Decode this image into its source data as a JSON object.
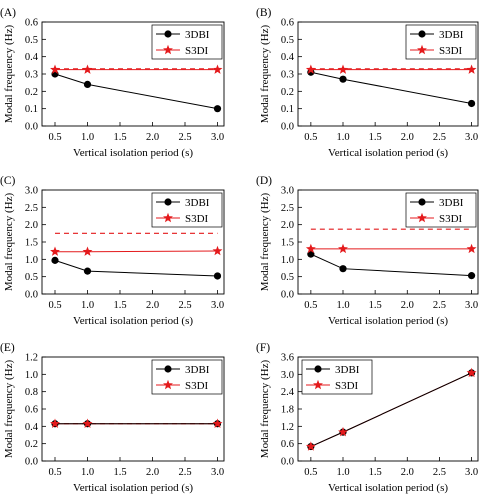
{
  "chart_data": [
    {
      "panel": "(A)",
      "type": "line",
      "xlabel": "Vertical isolation period (s)",
      "ylabel": "Modal frequency (Hz)",
      "xlim": [
        0.3,
        3.1
      ],
      "xticks": [
        0.5,
        1.0,
        1.5,
        2.0,
        2.5,
        3.0
      ],
      "xtick_labels": [
        "0.5",
        "1.0",
        "1.5",
        "2.0",
        "2.5",
        "3.0"
      ],
      "ylim": [
        0.0,
        0.6
      ],
      "yticks": [
        0.0,
        0.1,
        0.2,
        0.3,
        0.4,
        0.5,
        0.6
      ],
      "ytick_labels": [
        "0.0",
        "0.1",
        "0.2",
        "0.3",
        "0.4",
        "0.5",
        "0.6"
      ],
      "legend_position": "top-right",
      "x": [
        0.5,
        1.0,
        3.0
      ],
      "series": [
        {
          "name": "3DBI",
          "values": [
            0.3,
            0.24,
            0.1
          ],
          "color": "#000000",
          "marker": "circle"
        },
        {
          "name": "S3DI",
          "values": [
            0.325,
            0.325,
            0.325
          ],
          "color": "#e41a1c",
          "marker": "star"
        }
      ],
      "dashed_line": 0.33
    },
    {
      "panel": "(B)",
      "type": "line",
      "xlabel": "Vertical isolation period (s)",
      "ylabel": "Modal frequency (Hz)",
      "xlim": [
        0.3,
        3.1
      ],
      "xticks": [
        0.5,
        1.0,
        1.5,
        2.0,
        2.5,
        3.0
      ],
      "xtick_labels": [
        "0.5",
        "1.0",
        "1.5",
        "2.0",
        "2.5",
        "3.0"
      ],
      "ylim": [
        0.0,
        0.6
      ],
      "yticks": [
        0.0,
        0.1,
        0.2,
        0.3,
        0.4,
        0.5,
        0.6
      ],
      "ytick_labels": [
        "0.0",
        "0.1",
        "0.2",
        "0.3",
        "0.4",
        "0.5",
        "0.6"
      ],
      "legend_position": "top-right",
      "x": [
        0.5,
        1.0,
        3.0
      ],
      "series": [
        {
          "name": "3DBI",
          "values": [
            0.31,
            0.27,
            0.13
          ],
          "color": "#000000",
          "marker": "circle"
        },
        {
          "name": "S3DI",
          "values": [
            0.325,
            0.325,
            0.325
          ],
          "color": "#e41a1c",
          "marker": "star"
        }
      ],
      "dashed_line": 0.33
    },
    {
      "panel": "(C)",
      "type": "line",
      "xlabel": "Vertical isolation period (s)",
      "ylabel": "Modal frequency (Hz)",
      "xlim": [
        0.3,
        3.1
      ],
      "xticks": [
        0.5,
        1.0,
        1.5,
        2.0,
        2.5,
        3.0
      ],
      "xtick_labels": [
        "0.5",
        "1.0",
        "1.5",
        "2.0",
        "2.5",
        "3.0"
      ],
      "ylim": [
        0.0,
        3.0
      ],
      "yticks": [
        0.0,
        0.5,
        1.0,
        1.5,
        2.0,
        2.5,
        3.0
      ],
      "ytick_labels": [
        "0.0",
        "0.5",
        "1.0",
        "1.5",
        "2.0",
        "2.5",
        "3.0"
      ],
      "legend_position": "top-right",
      "x": [
        0.5,
        1.0,
        3.0
      ],
      "series": [
        {
          "name": "3DBI",
          "values": [
            0.97,
            0.66,
            0.52
          ],
          "color": "#000000",
          "marker": "circle"
        },
        {
          "name": "S3DI",
          "values": [
            1.22,
            1.22,
            1.24
          ],
          "color": "#e41a1c",
          "marker": "star"
        }
      ],
      "dashed_line": 1.75
    },
    {
      "panel": "(D)",
      "type": "line",
      "xlabel": "Vertical isolation period (s)",
      "ylabel": "Modal frequency (Hz)",
      "xlim": [
        0.3,
        3.1
      ],
      "xticks": [
        0.5,
        1.0,
        1.5,
        2.0,
        2.5,
        3.0
      ],
      "xtick_labels": [
        "0.5",
        "1.0",
        "1.5",
        "2.0",
        "2.5",
        "3.0"
      ],
      "ylim": [
        0.0,
        3.0
      ],
      "yticks": [
        0.0,
        0.5,
        1.0,
        1.5,
        2.0,
        2.5,
        3.0
      ],
      "ytick_labels": [
        "0.0",
        "0.5",
        "1.0",
        "1.5",
        "2.0",
        "2.5",
        "3.0"
      ],
      "legend_position": "top-right",
      "x": [
        0.5,
        1.0,
        3.0
      ],
      "series": [
        {
          "name": "3DBI",
          "values": [
            1.15,
            0.73,
            0.53
          ],
          "color": "#000000",
          "marker": "circle"
        },
        {
          "name": "S3DI",
          "values": [
            1.3,
            1.3,
            1.3
          ],
          "color": "#e41a1c",
          "marker": "star"
        }
      ],
      "dashed_line": 1.87
    },
    {
      "panel": "(E)",
      "type": "line",
      "xlabel": "Vertical isolation period (s)",
      "ylabel": "Modal frequency (Hz)",
      "xlim": [
        0.3,
        3.1
      ],
      "xticks": [
        0.5,
        1.0,
        1.5,
        2.0,
        2.5,
        3.0
      ],
      "xtick_labels": [
        "0.5",
        "1.0",
        "1.5",
        "2.0",
        "2.5",
        "3.0"
      ],
      "ylim": [
        0.0,
        1.2
      ],
      "yticks": [
        0.0,
        0.2,
        0.4,
        0.6,
        0.8,
        1.0,
        1.2
      ],
      "ytick_labels": [
        "0.0",
        "0.2",
        "0.4",
        "0.6",
        "0.8",
        "1.0",
        "1.2"
      ],
      "legend_position": "top-right",
      "x": [
        0.5,
        1.0,
        3.0
      ],
      "series": [
        {
          "name": "3DBI",
          "values": [
            0.43,
            0.43,
            0.43
          ],
          "color": "#000000",
          "marker": "circle"
        },
        {
          "name": "S3DI",
          "values": [
            0.43,
            0.43,
            0.43
          ],
          "color": "#e41a1c",
          "marker": "star"
        }
      ],
      "dashed_line": 0.43
    },
    {
      "panel": "(F)",
      "type": "line",
      "xlabel": "Vertical isolation period (s)",
      "ylabel": "Modal frequency (Hz)",
      "xlim": [
        0.3,
        3.1
      ],
      "xticks": [
        0.5,
        1.0,
        1.5,
        2.0,
        2.5,
        3.0
      ],
      "xtick_labels": [
        "0.5",
        "1.0",
        "1.5",
        "2.0",
        "2.5",
        "3.0"
      ],
      "ylim": [
        0.0,
        3.6
      ],
      "yticks": [
        0.0,
        0.6,
        1.2,
        1.8,
        2.4,
        3.0,
        3.6
      ],
      "ytick_labels": [
        "0.0",
        "0.6",
        "1.2",
        "1.8",
        "2.4",
        "3.0",
        "3.6"
      ],
      "legend_position": "top-left",
      "x": [
        0.5,
        1.0,
        3.0
      ],
      "series": [
        {
          "name": "3DBI",
          "values": [
            0.5,
            1.0,
            3.05
          ],
          "color": "#000000",
          "marker": "circle"
        },
        {
          "name": "S3DI",
          "values": [
            0.5,
            1.0,
            3.05
          ],
          "color": "#e41a1c",
          "marker": "star"
        }
      ],
      "dashed_line": null
    }
  ]
}
